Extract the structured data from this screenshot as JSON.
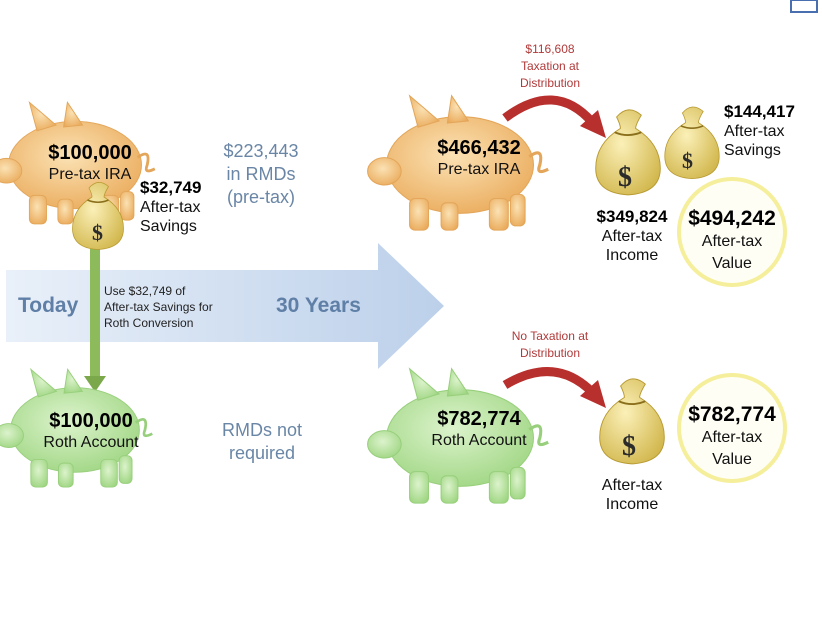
{
  "colors": {
    "pig_orange": "#f3c27c",
    "pig_green": "#b9e5a1",
    "bag": "#e8d27a",
    "arrow_blue": "#c9daf0",
    "arrow_green": "#8dba5a",
    "arrow_red": "#b8302e",
    "circle": "#f5ee9a",
    "label_blue": "#6a86a6"
  },
  "timeline": {
    "start": "Today",
    "end": "30 Years"
  },
  "today": {
    "ira": {
      "amount": "$100,000",
      "label": "Pre-tax IRA"
    },
    "savings": {
      "amount": "$32,749",
      "line1": "After-tax",
      "line2": "Savings"
    },
    "rmd_note": {
      "line1": "$223,443",
      "line2": "in RMDs",
      "line3": "(pre-tax)"
    },
    "conversion_note": {
      "line1": "Use $32,749 of",
      "line2": "After-tax Savings for",
      "line3": "Roth Conversion"
    },
    "roth": {
      "amount": "$100,000",
      "label": "Roth Account"
    },
    "roth_rmd_note": {
      "line1": "RMDs not",
      "line2": "required"
    }
  },
  "future": {
    "ira": {
      "amount": "$466,432",
      "label": "Pre-tax IRA"
    },
    "tax_note": {
      "line1": "$116,608",
      "line2": "Taxation at",
      "line3": "Distribution"
    },
    "savings": {
      "amount": "$144,417",
      "line1": "After-tax",
      "line2": "Savings"
    },
    "income": {
      "amount": "$349,824",
      "line1": "After-tax",
      "line2": "Income"
    },
    "value": {
      "amount": "$494,242",
      "line1": "After-tax",
      "line2": "Value"
    },
    "roth": {
      "amount": "$782,774",
      "label": "Roth Account"
    },
    "roth_tax_note": {
      "line1": "No Taxation at",
      "line2": "Distribution"
    },
    "roth_income": {
      "line1": "After-tax",
      "line2": "Income"
    },
    "roth_value": {
      "amount": "$782,774",
      "line1": "After-tax",
      "line2": "Value"
    }
  }
}
